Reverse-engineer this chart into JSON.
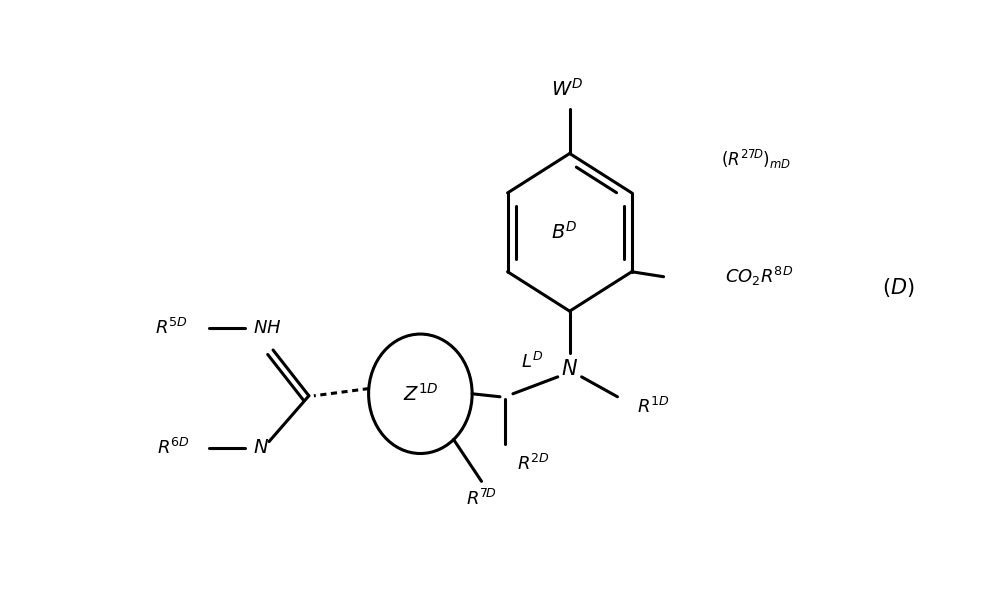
{
  "background_color": "#ffffff",
  "line_color": "#000000",
  "line_width": 2.2,
  "figsize": [
    9.99,
    6.07
  ],
  "dpi": 100
}
